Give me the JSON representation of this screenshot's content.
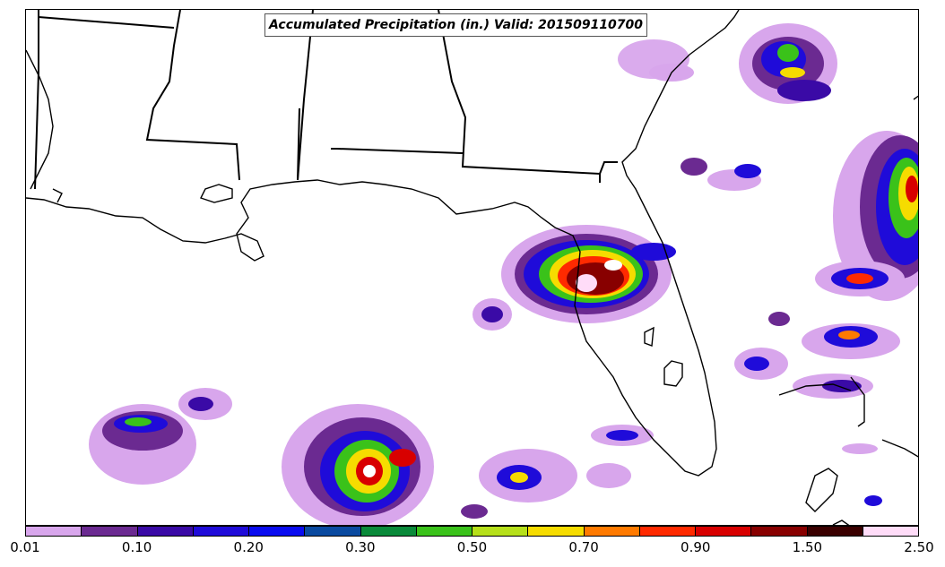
{
  "title": "Accumulated Precipitation (in.) Valid: 201509110700",
  "colorbar": {
    "colors": [
      "#d8a6ec",
      "#6b2a91",
      "#3a0aa6",
      "#1f0bd9",
      "#0a0cf0",
      "#0a4aa0",
      "#0a8a3a",
      "#3ac21a",
      "#b6e01a",
      "#f6dc00",
      "#ff7a00",
      "#ff2a00",
      "#d80000",
      "#880000",
      "#3a0000",
      "#ffdcf8"
    ],
    "tick_labels": [
      "0.01",
      "0.10",
      "0.20",
      "0.30",
      "0.50",
      "0.70",
      "0.90",
      "1.50",
      "2.50"
    ]
  },
  "legend_palette": {
    "coast": "#000000",
    "border": "#000000"
  }
}
